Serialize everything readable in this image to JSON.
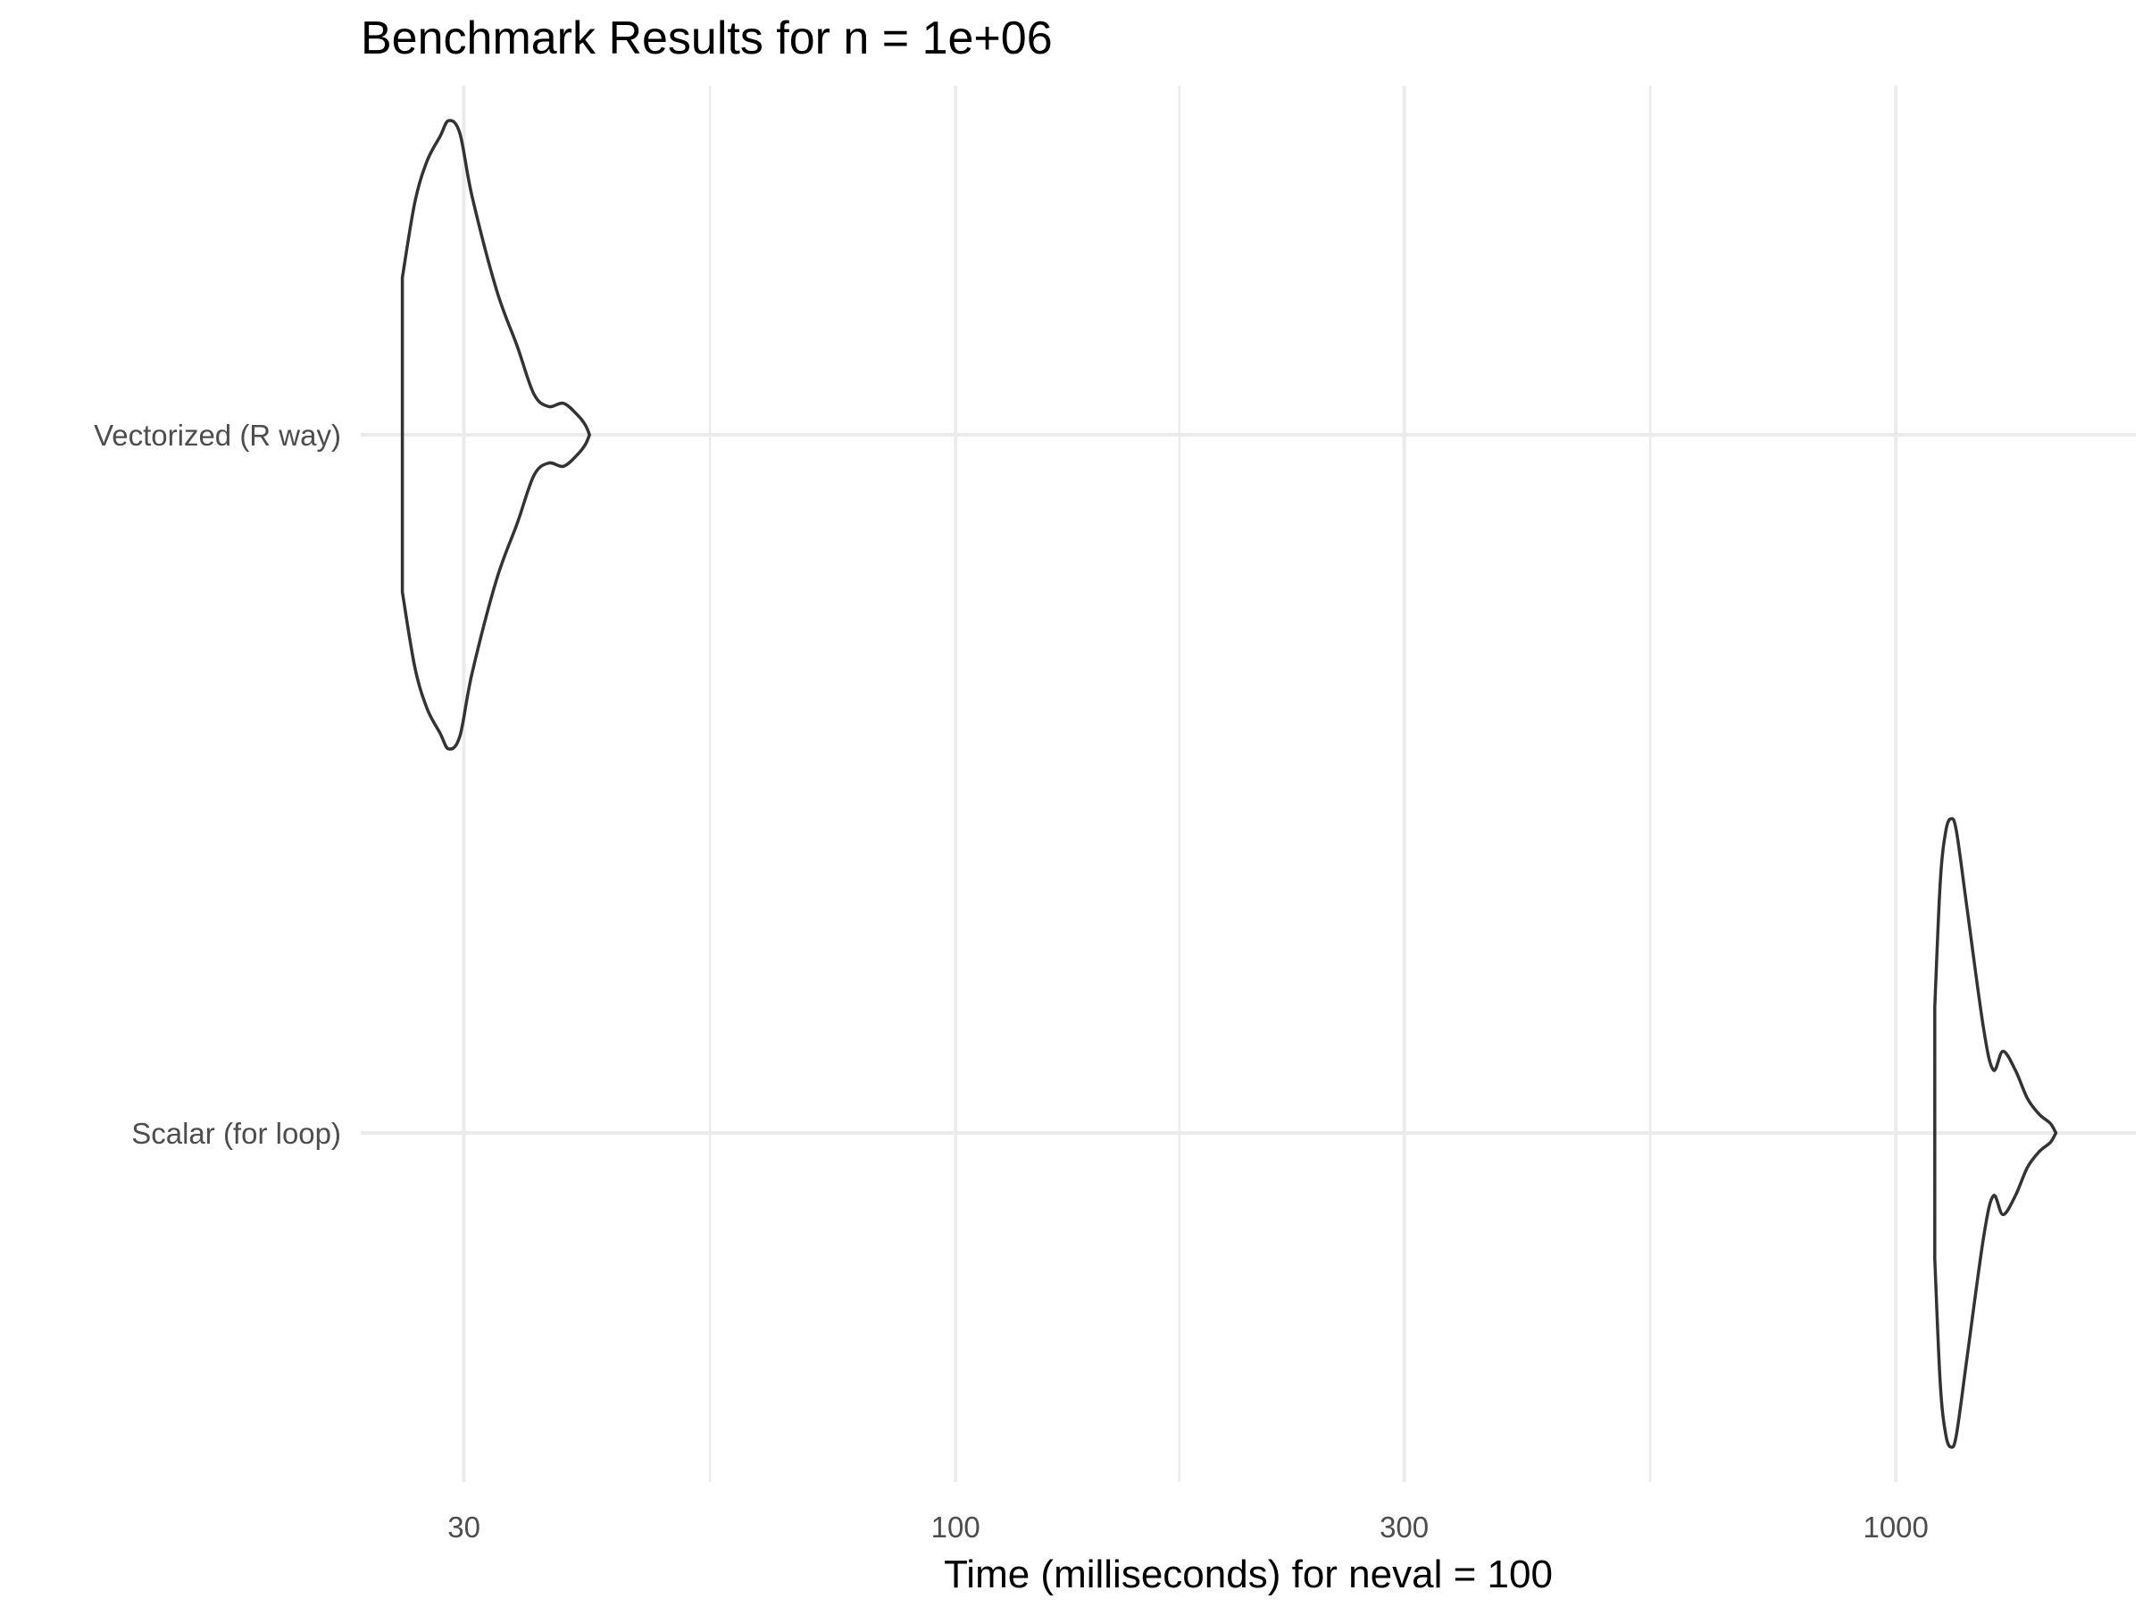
{
  "chart_data": {
    "type": "violin",
    "title": "Benchmark Results for n = 1e+06",
    "xlabel": "Time (milliseconds) for neval = 100",
    "ylabel": "",
    "x_scale": "log10",
    "xlim": [
      23.3,
      1800
    ],
    "x_ticks": [
      30,
      100,
      300,
      1000
    ],
    "x_tick_labels": [
      "30",
      "100",
      "300",
      "1000"
    ],
    "x_minor_ticks": [
      54.8,
      173,
      548
    ],
    "categories": [
      "Vectorized (R way)",
      "Scalar (for loop)"
    ],
    "grid": "major and minor, light gray",
    "legend": "none",
    "series": [
      {
        "category": "Vectorized (R way)",
        "min": 25.8,
        "max": 40.8,
        "density_profile": [
          [
            25.8,
            0.5
          ],
          [
            26.6,
            0.74
          ],
          [
            27.4,
            0.87
          ],
          [
            28.3,
            0.95
          ],
          [
            28.9,
            1.0
          ],
          [
            29.7,
            0.96
          ],
          [
            30.6,
            0.76
          ],
          [
            32.5,
            0.46
          ],
          [
            34.2,
            0.28
          ],
          [
            35.6,
            0.13
          ],
          [
            36.9,
            0.09
          ],
          [
            38.3,
            0.1
          ],
          [
            39.7,
            0.06
          ],
          [
            40.4,
            0.03
          ],
          [
            40.8,
            0.0
          ]
        ]
      },
      {
        "category": "Scalar (for loop)",
        "min": 1100,
        "max": 1480,
        "density_profile": [
          [
            1100,
            0.4
          ],
          [
            1115,
            0.8
          ],
          [
            1130,
            0.96
          ],
          [
            1145,
            1.0
          ],
          [
            1160,
            0.96
          ],
          [
            1190,
            0.72
          ],
          [
            1240,
            0.33
          ],
          [
            1270,
            0.2
          ],
          [
            1300,
            0.26
          ],
          [
            1340,
            0.2
          ],
          [
            1380,
            0.11
          ],
          [
            1420,
            0.06
          ],
          [
            1460,
            0.03
          ],
          [
            1480,
            0.0
          ]
        ]
      }
    ]
  }
}
